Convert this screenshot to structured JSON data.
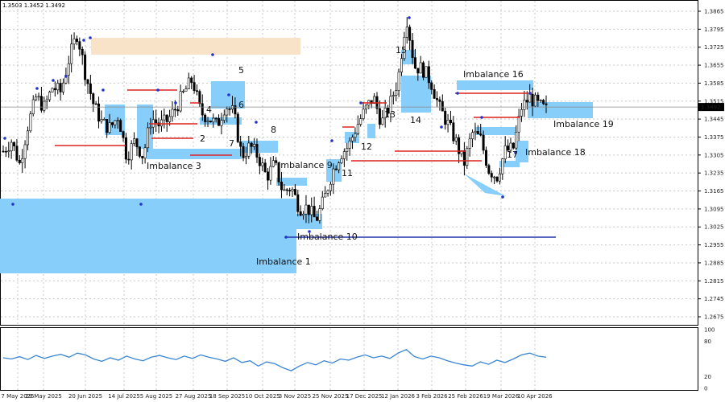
{
  "chart_data": {
    "type": "candlestick",
    "ohlc_header": "1.3503 1.3452 1.3492",
    "price_axis": {
      "ticks": [
        "1.3865",
        "1.3795",
        "1.3725",
        "1.3655",
        "1.3585",
        "1.3515",
        "1.3445",
        "1.3375",
        "1.3305",
        "1.3235",
        "1.3165",
        "1.3095",
        "1.3025",
        "1.2955",
        "1.2885",
        "1.2815",
        "1.2745",
        "1.2675"
      ],
      "current_price": "1.3492",
      "ylim": [
        1.265,
        1.389
      ]
    },
    "x_ticks": [
      "7 May 2025",
      "29 May 2025",
      "20 Jun 2025",
      "14 Jul 2025",
      "5 Aug 2025",
      "27 Aug 2025",
      "18 Sep 2025",
      "10 Oct 2025",
      "3 Nov 2025",
      "25 Nov 2025",
      "17 Dec 2025",
      "12 Jan 2026",
      "3 Feb 2026",
      "25 Feb 2026",
      "19 Mar 2026",
      "10 Apr 2026"
    ],
    "close_path": [
      1.332,
      1.336,
      1.327,
      1.342,
      1.353,
      1.349,
      1.357,
      1.355,
      1.368,
      1.378,
      1.362,
      1.35,
      1.343,
      1.341,
      1.346,
      1.33,
      1.336,
      1.33,
      1.345,
      1.342,
      1.344,
      1.349,
      1.355,
      1.36,
      1.347,
      1.345,
      1.342,
      1.35,
      1.347,
      1.33,
      1.334,
      1.33,
      1.322,
      1.327,
      1.316,
      1.318,
      1.31,
      1.31,
      1.305,
      1.313,
      1.324,
      1.331,
      1.334,
      1.342,
      1.348,
      1.353,
      1.343,
      1.35,
      1.36,
      1.385,
      1.365,
      1.364,
      1.359,
      1.349,
      1.343,
      1.336,
      1.327,
      1.339,
      1.337,
      1.325,
      1.322,
      1.332,
      1.333,
      1.349,
      1.353,
      1.35,
      1.348
    ],
    "rsi": {
      "ticks": [
        "100",
        "80",
        "20",
        "0"
      ],
      "values": [
        52,
        50,
        54,
        49,
        56,
        51,
        55,
        58,
        53,
        60,
        57,
        50,
        46,
        52,
        48,
        55,
        50,
        47,
        53,
        56,
        52,
        49,
        55,
        51,
        57,
        53,
        50,
        46,
        52,
        44,
        47,
        38,
        45,
        42,
        35,
        30,
        38,
        44,
        40,
        47,
        43,
        50,
        48,
        53,
        57,
        52,
        55,
        51,
        60,
        66,
        54,
        50,
        55,
        52,
        47,
        43,
        40,
        38,
        45,
        41,
        48,
        44,
        50,
        57,
        60,
        55,
        53
      ]
    },
    "zones": [
      {
        "label": "Imbalance 1"
      },
      {
        "label": "Imbalance 3"
      },
      {
        "label": "Imbalance 9"
      },
      {
        "label": "Imbalance 10"
      },
      {
        "label": "Imbalance 16"
      },
      {
        "label": "Imbalance 18"
      },
      {
        "label": "Imbalance 19"
      }
    ],
    "numbers": [
      "2",
      "4",
      "5",
      "6",
      "7",
      "8",
      "11",
      "12",
      "13",
      "14",
      "15",
      "17"
    ],
    "colors": {
      "zone": "#87cefa",
      "zone_tan": "#f8e3c8",
      "level_red": "#dd2222",
      "level_blue": "#2233aa",
      "rsi": "#3a86d4",
      "bull": "#000000",
      "bear": "#000000"
    }
  }
}
